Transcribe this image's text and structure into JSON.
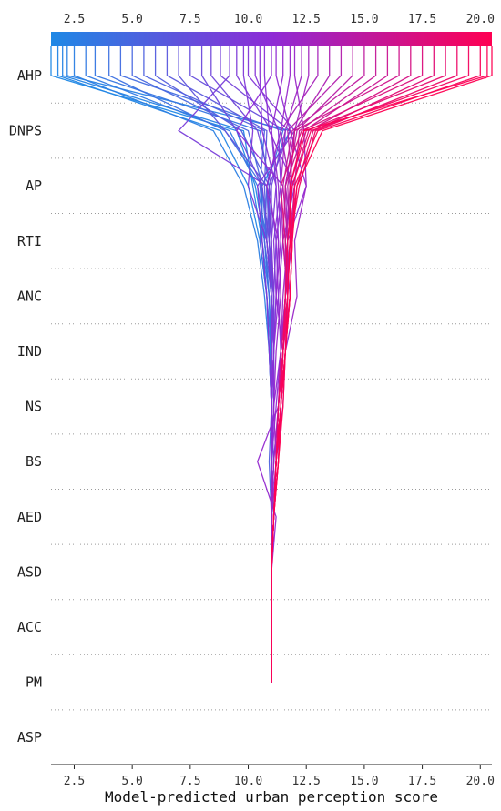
{
  "chart_data": {
    "type": "line",
    "title": "",
    "xlabel": "Model-predicted urban perception score",
    "ylabel": "",
    "xlim": [
      1.5,
      20.5
    ],
    "x_ticks": [
      "2.5",
      "5.0",
      "7.5",
      "10.0",
      "12.5",
      "15.0",
      "17.5",
      "20.0"
    ],
    "x_tick_values": [
      2.5,
      5.0,
      7.5,
      10.0,
      12.5,
      15.0,
      17.5,
      20.0
    ],
    "features": [
      "AHP",
      "DNPS",
      "AP",
      "RTI",
      "ANC",
      "IND",
      "NS",
      "BS",
      "AED",
      "ASD",
      "ACC",
      "PM",
      "ASP"
    ],
    "base_value": 11.0,
    "grid": "dotted horizontal lines between features",
    "colorbar": {
      "position": "top",
      "min": 1.5,
      "max": 20.5,
      "low_color": "#1E88E5",
      "mid_color": "#8E2BD6",
      "high_color": "#FF0052"
    },
    "series": [
      {
        "final": 1.5,
        "path": [
          1.5,
          9.5,
          10.3,
          10.7,
          10.9,
          10.95,
          11.0,
          11.0,
          11.0,
          11.0,
          11.0,
          11.0
        ]
      },
      {
        "final": 1.8,
        "path": [
          1.8,
          8.8,
          10.0,
          10.5,
          10.8,
          10.9,
          11.0,
          11.0,
          11.0,
          11.0,
          11.0,
          11.0
        ]
      },
      {
        "final": 2.0,
        "path": [
          2.0,
          9.8,
          10.2,
          10.6,
          10.8,
          10.9,
          11.0,
          11.1,
          11.0,
          11.0,
          11.0,
          11.0
        ]
      },
      {
        "final": 2.2,
        "path": [
          2.2,
          11.8,
          10.6,
          10.6,
          10.9,
          11.0,
          11.0,
          11.1,
          11.0,
          11.0,
          11.0,
          11.0
        ]
      },
      {
        "final": 2.5,
        "path": [
          2.5,
          8.5,
          9.8,
          10.4,
          10.7,
          10.9,
          11.0,
          11.0,
          11.0,
          11.0,
          11.0,
          11.0
        ]
      },
      {
        "final": 3.0,
        "path": [
          3.0,
          9.2,
          10.4,
          10.8,
          11.0,
          11.1,
          11.1,
          11.0,
          11.1,
          11.0,
          11.0,
          11.0
        ]
      },
      {
        "final": 3.4,
        "path": [
          3.4,
          10.5,
          10.9,
          10.9,
          11.1,
          11.1,
          11.1,
          11.0,
          11.0,
          11.0,
          11.0,
          11.0
        ]
      },
      {
        "final": 4.0,
        "path": [
          4.0,
          9.0,
          10.6,
          10.5,
          10.8,
          11.0,
          11.0,
          11.0,
          11.0,
          11.0,
          11.0,
          11.0
        ]
      },
      {
        "final": 4.5,
        "path": [
          4.5,
          11.5,
          10.8,
          10.7,
          10.9,
          11.0,
          11.0,
          11.0,
          11.0,
          11.0,
          11.0,
          11.0
        ]
      },
      {
        "final": 5.0,
        "path": [
          5.0,
          10.0,
          10.6,
          10.8,
          11.0,
          11.0,
          11.0,
          11.0,
          11.0,
          11.0,
          11.0,
          11.0
        ]
      },
      {
        "final": 5.5,
        "path": [
          5.5,
          10.7,
          10.5,
          10.7,
          11.0,
          11.1,
          11.0,
          10.9,
          11.0,
          11.0,
          11.0,
          11.0
        ]
      },
      {
        "final": 6.0,
        "path": [
          6.0,
          9.7,
          10.9,
          10.8,
          11.1,
          11.1,
          11.0,
          11.0,
          11.0,
          11.0,
          11.0,
          11.0
        ]
      },
      {
        "final": 6.5,
        "path": [
          6.5,
          10.8,
          10.7,
          10.8,
          11.0,
          11.0,
          11.0,
          11.0,
          11.0,
          11.0,
          11.0,
          11.0
        ]
      },
      {
        "final": 7.0,
        "path": [
          7.0,
          9.0,
          10.8,
          10.9,
          11.0,
          11.0,
          11.0,
          11.0,
          11.0,
          11.0,
          11.0,
          11.0
        ]
      },
      {
        "final": 7.5,
        "path": [
          7.5,
          11.6,
          11.0,
          10.9,
          11.1,
          11.1,
          11.0,
          11.0,
          11.0,
          11.0,
          11.0,
          11.0
        ]
      },
      {
        "final": 8.0,
        "path": [
          8.0,
          9.5,
          10.6,
          10.9,
          11.0,
          11.0,
          11.0,
          11.1,
          11.0,
          11.0,
          11.0,
          11.0
        ]
      },
      {
        "final": 8.4,
        "path": [
          8.4,
          10.4,
          11.0,
          11.0,
          11.0,
          11.1,
          11.0,
          11.0,
          11.0,
          11.0,
          11.0,
          11.0
        ]
      },
      {
        "final": 8.8,
        "path": [
          8.8,
          11.8,
          10.9,
          11.2,
          11.1,
          11.1,
          11.0,
          11.0,
          11.0,
          11.0,
          11.0,
          11.0
        ]
      },
      {
        "final": 9.2,
        "path": [
          9.2,
          7.0,
          10.8,
          11.0,
          11.1,
          11.0,
          11.0,
          11.0,
          11.0,
          11.0,
          11.0,
          11.0
        ]
      },
      {
        "final": 9.5,
        "path": [
          9.5,
          11.0,
          11.2,
          11.0,
          11.1,
          11.0,
          11.0,
          11.0,
          11.0,
          11.0,
          11.0,
          11.0
        ]
      },
      {
        "final": 9.8,
        "path": [
          9.8,
          10.2,
          10.0,
          10.8,
          11.0,
          11.0,
          11.0,
          11.0,
          11.0,
          11.0,
          11.0,
          11.0
        ]
      },
      {
        "final": 10.0,
        "path": [
          10.0,
          12.0,
          10.4,
          10.6,
          10.8,
          10.9,
          11.0,
          11.0,
          11.0,
          11.0,
          11.0,
          11.0
        ]
      },
      {
        "final": 10.3,
        "path": [
          10.3,
          11.3,
          11.4,
          11.1,
          11.2,
          11.1,
          11.0,
          11.0,
          11.0,
          11.0,
          11.0,
          11.0
        ]
      },
      {
        "final": 10.5,
        "path": [
          10.5,
          10.6,
          11.2,
          11.3,
          11.2,
          11.1,
          11.1,
          11.0,
          11.0,
          11.0,
          11.0,
          11.0
        ]
      },
      {
        "final": 10.7,
        "path": [
          10.7,
          10.9,
          12.0,
          11.5,
          11.3,
          11.1,
          11.0,
          11.0,
          11.0,
          11.0,
          11.0,
          11.0
        ]
      },
      {
        "final": 11.0,
        "path": [
          11.0,
          9.5,
          11.5,
          11.2,
          11.3,
          11.4,
          11.1,
          11.0,
          11.0,
          11.0,
          11.0,
          11.0
        ]
      },
      {
        "final": 11.2,
        "path": [
          11.2,
          11.8,
          12.5,
          11.7,
          11.6,
          11.4,
          11.2,
          11.0,
          11.0,
          11.0,
          11.0,
          11.0
        ]
      },
      {
        "final": 11.5,
        "path": [
          11.5,
          11.0,
          11.3,
          11.4,
          11.2,
          11.5,
          11.3,
          10.4,
          11.2,
          11.0,
          11.0,
          11.0
        ]
      },
      {
        "final": 11.8,
        "path": [
          11.8,
          11.4,
          10.8,
          11.3,
          11.4,
          11.2,
          11.1,
          11.2,
          11.0,
          11.0,
          11.0,
          11.0
        ]
      },
      {
        "final": 12.0,
        "path": [
          12.0,
          12.4,
          12.5,
          12.0,
          12.1,
          11.6,
          11.5,
          11.2,
          11.1,
          11.0,
          11.0,
          11.0
        ]
      },
      {
        "final": 12.3,
        "path": [
          12.3,
          11.6,
          11.4,
          11.5,
          11.7,
          11.5,
          11.3,
          11.1,
          11.0,
          11.0,
          11.0,
          11.0
        ]
      },
      {
        "final": 12.6,
        "path": [
          12.6,
          12.0,
          11.6,
          11.7,
          11.5,
          11.4,
          11.3,
          11.1,
          11.0,
          11.0,
          11.0,
          11.0
        ]
      },
      {
        "final": 13.0,
        "path": [
          13.0,
          11.4,
          11.8,
          11.6,
          11.6,
          11.4,
          11.3,
          11.2,
          11.1,
          11.0,
          11.0,
          11.0
        ]
      },
      {
        "final": 13.5,
        "path": [
          13.5,
          12.0,
          11.6,
          11.9,
          11.6,
          11.5,
          11.3,
          11.2,
          11.1,
          11.0,
          11.0,
          11.0
        ]
      },
      {
        "final": 14.0,
        "path": [
          14.0,
          11.7,
          11.9,
          11.6,
          11.8,
          11.5,
          11.3,
          11.2,
          11.1,
          11.0,
          11.0,
          11.0
        ]
      },
      {
        "final": 14.5,
        "path": [
          14.5,
          12.1,
          11.7,
          11.8,
          11.6,
          11.5,
          11.4,
          11.2,
          11.1,
          11.0,
          11.0,
          11.0
        ]
      },
      {
        "final": 15.0,
        "path": [
          15.0,
          11.9,
          11.5,
          11.7,
          11.7,
          11.5,
          11.3,
          11.2,
          11.1,
          11.0,
          11.0,
          11.0
        ]
      },
      {
        "final": 15.5,
        "path": [
          15.5,
          12.2,
          12.0,
          11.8,
          11.6,
          11.5,
          11.4,
          11.2,
          11.1,
          11.0,
          11.0,
          11.0
        ]
      },
      {
        "final": 16.0,
        "path": [
          16.0,
          12.4,
          11.6,
          11.5,
          11.7,
          11.4,
          11.3,
          11.2,
          11.1,
          11.0,
          11.0,
          11.0
        ]
      },
      {
        "final": 16.5,
        "path": [
          16.5,
          12.0,
          11.8,
          11.9,
          11.8,
          11.6,
          11.4,
          11.2,
          11.1,
          11.0,
          11.0,
          11.0
        ]
      },
      {
        "final": 17.0,
        "path": [
          17.0,
          12.6,
          11.9,
          11.7,
          11.6,
          11.5,
          11.3,
          11.2,
          11.1,
          11.0,
          11.0,
          11.0
        ]
      },
      {
        "final": 17.5,
        "path": [
          17.5,
          12.3,
          11.4,
          11.6,
          11.7,
          11.6,
          11.4,
          11.3,
          11.1,
          11.0,
          11.0,
          11.0
        ]
      },
      {
        "final": 18.0,
        "path": [
          18.0,
          12.8,
          12.1,
          11.8,
          11.7,
          11.5,
          11.4,
          11.2,
          11.1,
          11.0,
          11.0,
          11.0
        ]
      },
      {
        "final": 18.5,
        "path": [
          18.5,
          12.5,
          11.8,
          11.9,
          11.8,
          11.6,
          11.4,
          11.3,
          11.1,
          11.0,
          11.0,
          11.0
        ]
      },
      {
        "final": 19.0,
        "path": [
          19.0,
          12.9,
          12.2,
          11.8,
          11.7,
          11.5,
          11.3,
          11.2,
          11.1,
          11.0,
          11.0,
          11.0
        ]
      },
      {
        "final": 19.5,
        "path": [
          19.5,
          12.7,
          11.9,
          11.7,
          11.6,
          11.5,
          11.4,
          11.2,
          11.1,
          11.0,
          11.0,
          11.0
        ]
      },
      {
        "final": 20.0,
        "path": [
          20.0,
          13.0,
          12.0,
          11.9,
          11.8,
          11.6,
          11.4,
          11.3,
          11.1,
          11.0,
          11.0,
          11.0
        ]
      },
      {
        "final": 20.3,
        "path": [
          20.3,
          12.4,
          11.8,
          11.8,
          11.7,
          11.6,
          11.4,
          11.2,
          11.1,
          11.0,
          11.0,
          11.0
        ]
      },
      {
        "final": 20.5,
        "path": [
          20.5,
          13.2,
          12.1,
          11.9,
          11.8,
          11.6,
          11.5,
          11.3,
          11.1,
          11.0,
          11.0,
          11.0
        ]
      }
    ]
  }
}
